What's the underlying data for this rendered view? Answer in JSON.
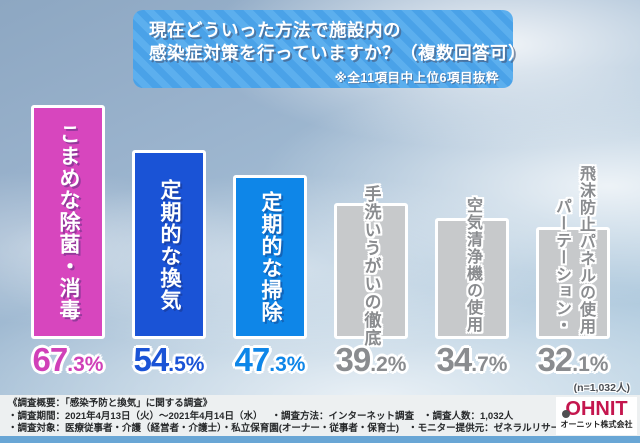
{
  "title": {
    "line1": "現在どういった方法で施設内の",
    "line2": "感染症対策を行っていますか？（複数回答可）",
    "note": "※全11項目中上位6項目抜粋"
  },
  "chart_data": {
    "type": "bar",
    "title": "現在どういった方法で施設内の感染症対策を行っていますか？（複数回答可）",
    "subtitle": "※全11項目中上位6項目抜粋",
    "unit": "%",
    "ylim": [
      0,
      70
    ],
    "sample_note": "(n=1,032人)",
    "categories": [
      "こまめな除菌・消毒",
      "定期的な換気",
      "定期的な掃除",
      "手洗いうがいの徹底",
      "空気清浄機の使用",
      "パーテーション・飛沫防止パネルの使用"
    ],
    "values": [
      67.3,
      54.5,
      47.3,
      39.2,
      34.7,
      32.1
    ],
    "bars": [
      {
        "label": "こまめな除菌・消毒",
        "label_columns": [
          {
            "text": "こまめな除菌・消毒",
            "offset": 0
          }
        ],
        "value": 67.3,
        "value_int": "67",
        "value_dec": ".3%",
        "fill": "#d746be",
        "value_color": "#d040b8",
        "text_style": "light",
        "label_mode": "center",
        "label_offset": 0,
        "label_font": 21
      },
      {
        "label": "定期的な換気",
        "label_columns": [
          {
            "text": "定期的な換気",
            "offset": 0
          }
        ],
        "value": 54.5,
        "value_int": "54",
        "value_dec": ".5%",
        "fill": "#1a53d6",
        "value_color": "#1a53d6",
        "text_style": "light",
        "label_mode": "center",
        "label_offset": 0,
        "label_font": 21
      },
      {
        "label": "定期的な掃除",
        "label_columns": [
          {
            "text": "定期的な掃除",
            "offset": 0
          }
        ],
        "value": 47.3,
        "value_int": "47",
        "value_dec": ".3%",
        "fill": "#0e86e8",
        "value_color": "#0e86e8",
        "text_style": "light",
        "label_mode": "center",
        "label_offset": 0,
        "label_font": 21
      },
      {
        "label": "手洗いうがいの徹底",
        "label_columns": [
          {
            "text": "手洗いうがいの徹底",
            "offset": 0
          }
        ],
        "value": 39.2,
        "value_int": "39",
        "value_dec": ".2%",
        "fill": "#c7c9cb",
        "value_color": "#8a8c8f",
        "text_style": "gray",
        "label_mode": "overflow",
        "label_offset": -18,
        "label_font": 17
      },
      {
        "label": "空気清浄機の使用",
        "label_columns": [
          {
            "text": "空気清浄機の使用",
            "offset": 0
          }
        ],
        "value": 34.7,
        "value_int": "34",
        "value_dec": ".7%",
        "fill": "#c7c9cb",
        "value_color": "#8a8c8f",
        "text_style": "gray",
        "label_mode": "overflow",
        "label_offset": -21,
        "label_font": 16
      },
      {
        "label": "パーテーション・飛沫防止パネルの使用",
        "label_columns": [
          {
            "text": "パーテーション・",
            "offset": 33
          },
          {
            "text": "飛沫防止パネルの使用",
            "offset": 0
          }
        ],
        "value": 32.1,
        "value_int": "32",
        "value_dec": ".1%",
        "fill": "#c7c9cb",
        "value_color": "#8a8c8f",
        "text_style": "gray",
        "label_mode": "overflow",
        "label_offset": -62,
        "label_font": 16
      }
    ]
  },
  "n_note": "(n=1,032人)",
  "footer": {
    "line1": "《調査概要：「感染予防と換気」に関する調査》",
    "line2a": "・調査期間：2021年4月13日（火）～2021年4月14日（水）",
    "line2b": "・調査方法：インターネット調査",
    "line2c": "・調査人数：1,032人",
    "line3a": "・調査対象：医療従事者・介護（経営者・介護士）・私立保育園(オーナー・従事者・保育士)",
    "line3b": "・モニター提供元：ゼネラルリサーチ"
  },
  "logo": {
    "word": "OHNIT",
    "company": "オーニット株式会社",
    "brand_color": "#c4164e"
  }
}
